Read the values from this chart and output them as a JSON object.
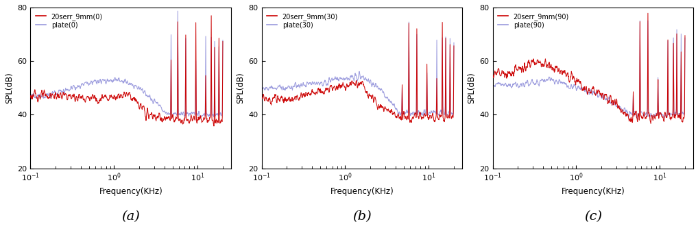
{
  "panels": [
    {
      "label": "(a)",
      "legend_serr": "20serr_9mm(0)",
      "legend_plate": "plate(0)",
      "serr_color": "#cc0000",
      "plate_color": "#9999dd"
    },
    {
      "label": "(b)",
      "legend_serr": "20serr_9mm(30)",
      "legend_plate": "plate(30)",
      "serr_color": "#cc0000",
      "plate_color": "#9999dd"
    },
    {
      "label": "(c)",
      "legend_serr": "20serr_9mm(90)",
      "legend_plate": "plate(90)",
      "serr_color": "#cc0000",
      "plate_color": "#9999dd"
    }
  ],
  "xlim_log": [
    -1,
    1.4
  ],
  "ylim": [
    20,
    80
  ],
  "yticks": [
    20,
    40,
    60,
    80
  ],
  "xlabel": "Frequency(KHz)",
  "ylabel": "SPL(dB)",
  "figsize": [
    10.18,
    3.4
  ],
  "dpi": 100
}
